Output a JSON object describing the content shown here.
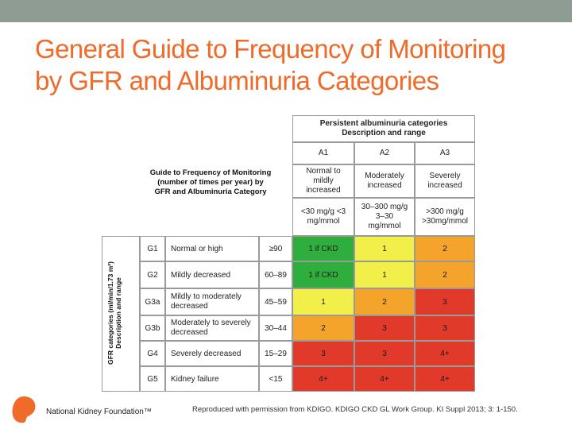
{
  "slide": {
    "title_line1": "General Guide to Frequency of Monitoring",
    "title_line2": "by GFR and Albuminuria Categories"
  },
  "guide_caption": {
    "line1": "Guide to Frequency of Monitoring",
    "line2": "(number of times per year) by",
    "line3": "GFR and Albuminuria Category"
  },
  "albuminuria_header": {
    "line1": "Persistent albuminuria categories",
    "line2": "Description  and range"
  },
  "albuminuria_categories": [
    {
      "code": "A1",
      "desc": "Normal to mildly increased",
      "range": "<30 mg/g <3 mg/mmol"
    },
    {
      "code": "A2",
      "desc": "Moderately increased",
      "range": "30–300 mg/g 3–30 mg/mmol"
    },
    {
      "code": "A3",
      "desc": "Severely increased",
      "range": ">300 mg/g >30mg/mmol"
    }
  ],
  "gfr_axis_label": {
    "line1": "GFR categories (ml/min/1.73 m²)",
    "line2": "Description and range"
  },
  "gfr_rows": [
    {
      "code": "G1",
      "desc": "Normal or high",
      "range": "≥90",
      "values": [
        "1 if CKD",
        "1",
        "2"
      ],
      "colors": [
        "#2fae3d",
        "#f2ee4a",
        "#f4a42b"
      ]
    },
    {
      "code": "G2",
      "desc": "Mildly decreased",
      "range": "60–89",
      "values": [
        "1 if CKD",
        "1",
        "2"
      ],
      "colors": [
        "#2fae3d",
        "#f2ee4a",
        "#f4a42b"
      ]
    },
    {
      "code": "G3a",
      "desc": "Mildly to moderately decreased",
      "range": "45–59",
      "values": [
        "1",
        "2",
        "3"
      ],
      "colors": [
        "#f2ee4a",
        "#f4a42b",
        "#e23a2a"
      ]
    },
    {
      "code": "G3b",
      "desc": "Moderately to severely decreased",
      "range": "30–44",
      "values": [
        "2",
        "3",
        "3"
      ],
      "colors": [
        "#f4a42b",
        "#e23a2a",
        "#e23a2a"
      ]
    },
    {
      "code": "G4",
      "desc": "Severely decreased",
      "range": "15–29",
      "values": [
        "3",
        "3",
        "4+"
      ],
      "colors": [
        "#e23a2a",
        "#e23a2a",
        "#e23a2a"
      ]
    },
    {
      "code": "G5",
      "desc": "Kidney failure",
      "range": "<15",
      "values": [
        "4+",
        "4+",
        "4+"
      ],
      "colors": [
        "#e23a2a",
        "#e23a2a",
        "#e23a2a"
      ]
    }
  ],
  "footer": {
    "org_name": "National Kidney Foundation™",
    "citation": "Reproduced with permission from KDIGO. KDIGO CKD GL Work Group. KI Suppl 2013; 3: 1-150."
  },
  "colors": {
    "title": "#f06a2a",
    "top_bar": "#8e9c93",
    "green": "#2fae3d",
    "yellow": "#f2ee4a",
    "orange": "#f4a42b",
    "red": "#e23a2a"
  }
}
